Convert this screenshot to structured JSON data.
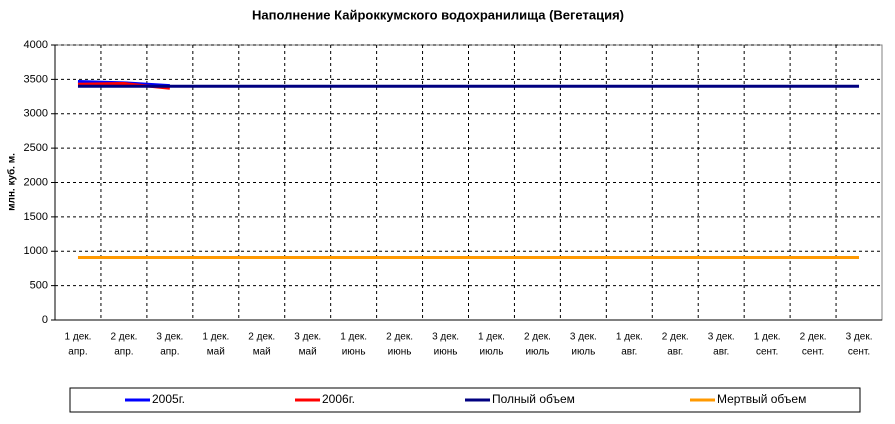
{
  "chart_data": {
    "type": "line",
    "title": "Наполнение Кайроккумского водохранилища (Вегетация)",
    "y_label": "млн. куб. м.",
    "categories": [
      [
        "1 дек.",
        "апр."
      ],
      [
        "2 дек.",
        "апр."
      ],
      [
        "3 дек.",
        "апр."
      ],
      [
        "1 дек.",
        "май"
      ],
      [
        "2 дек.",
        "май"
      ],
      [
        "3 дек.",
        "май"
      ],
      [
        "1 дек.",
        "июнь"
      ],
      [
        "2 дек.",
        "июнь"
      ],
      [
        "3 дек.",
        "июнь"
      ],
      [
        "1 дек.",
        "июль"
      ],
      [
        "2 дек.",
        "июль"
      ],
      [
        "3 дек.",
        "июль"
      ],
      [
        "1 дек.",
        "авг."
      ],
      [
        "2 дек.",
        "авг."
      ],
      [
        "3 дек.",
        "авг."
      ],
      [
        "1 дек.",
        "сент."
      ],
      [
        "2 дек.",
        "сент."
      ],
      [
        "3 дек.",
        "сент."
      ]
    ],
    "series": [
      {
        "name": "2005г.",
        "color": "#0000ff",
        "values": [
          3470,
          3450,
          3410,
          null,
          null,
          null,
          null,
          null,
          null,
          null,
          null,
          null,
          null,
          null,
          null,
          null,
          null,
          null
        ]
      },
      {
        "name": "2006г.",
        "color": "#ff0000",
        "values": [
          3430,
          3440,
          3370,
          null,
          null,
          null,
          null,
          null,
          null,
          null,
          null,
          null,
          null,
          null,
          null,
          null,
          null,
          null
        ]
      },
      {
        "name": "Полный объем",
        "color": "#000080",
        "values": [
          3400,
          3400,
          3400,
          3400,
          3400,
          3400,
          3400,
          3400,
          3400,
          3400,
          3400,
          3400,
          3400,
          3400,
          3400,
          3400,
          3400,
          3400
        ]
      },
      {
        "name": "Мертвый объем",
        "color": "#ff9900",
        "values": [
          910,
          910,
          910,
          910,
          910,
          910,
          910,
          910,
          910,
          910,
          910,
          910,
          910,
          910,
          910,
          910,
          910,
          910
        ]
      }
    ],
    "ylim": [
      0,
      4000
    ],
    "yticks": [
      0,
      500,
      1000,
      1500,
      2000,
      2500,
      3000,
      3500,
      4000
    ],
    "grid": true,
    "legend": "bottom"
  }
}
